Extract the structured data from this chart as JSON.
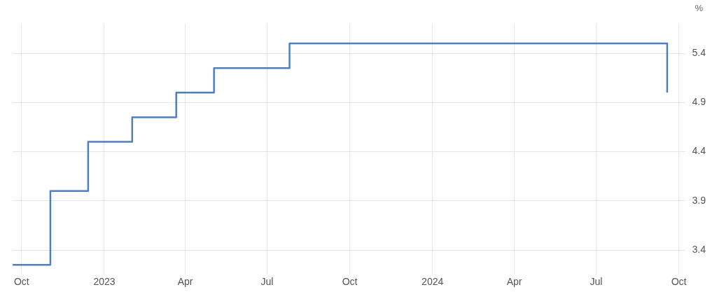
{
  "chart_data": {
    "type": "step",
    "ylabel": "%",
    "x": [
      "2022-09-21",
      "2022-11-02",
      "2022-12-14",
      "2023-02-01",
      "2023-03-22",
      "2023-05-03",
      "2023-07-26",
      "2024-09-18"
    ],
    "series": [
      {
        "color": "#4f7fc0",
        "values": [
          3.25,
          4.0,
          4.5,
          4.75,
          5.0,
          5.25,
          5.5,
          5.0
        ]
      }
    ],
    "xlim": [
      "2022-09-21",
      "2024-10-08"
    ],
    "xticks": [
      {
        "value": "2022-10-01",
        "label": "Oct"
      },
      {
        "value": "2023-01-01",
        "label": "2023"
      },
      {
        "value": "2023-04-01",
        "label": "Apr"
      },
      {
        "value": "2023-07-01",
        "label": "Jul"
      },
      {
        "value": "2023-10-01",
        "label": "Oct"
      },
      {
        "value": "2024-01-01",
        "label": "2024"
      },
      {
        "value": "2024-04-01",
        "label": "Apr"
      },
      {
        "value": "2024-07-01",
        "label": "Jul"
      },
      {
        "value": "2024-10-01",
        "label": "Oct"
      }
    ],
    "ylim": [
      3.15,
      5.7
    ],
    "yticks": [
      3.4,
      3.9,
      4.4,
      4.9,
      5.4
    ],
    "grid": true,
    "legend": false,
    "line_style": "solid",
    "marker": "none"
  }
}
